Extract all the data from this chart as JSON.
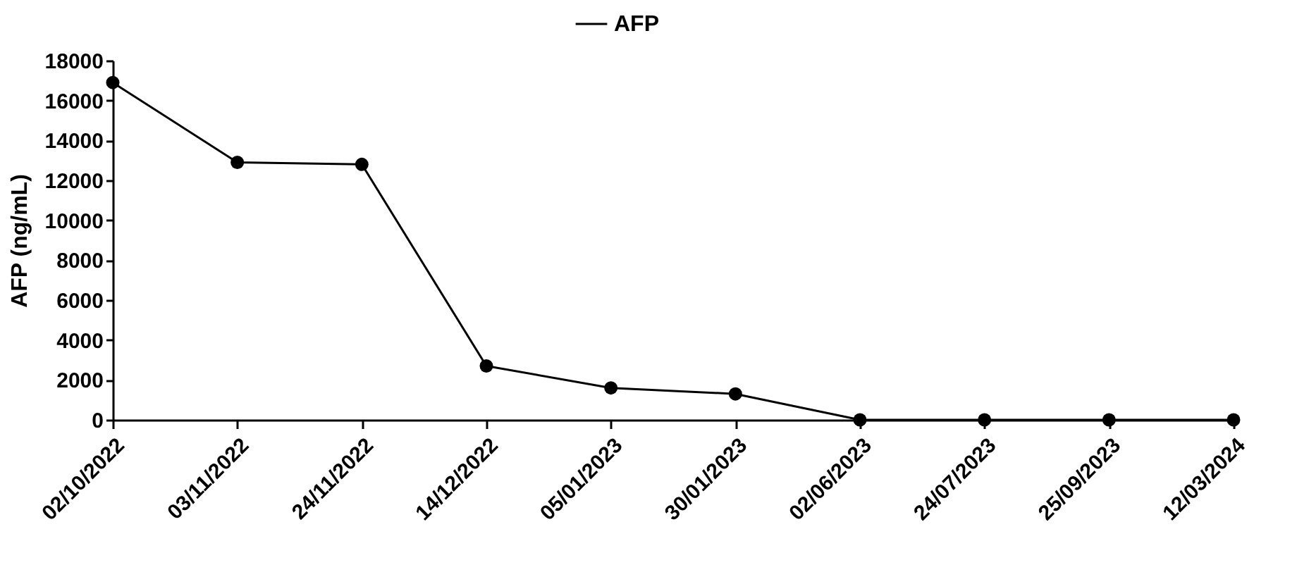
{
  "chart_data": {
    "type": "line",
    "ylabel": "AFP (ng/mL)",
    "categories": [
      "02/10/2022",
      "03/11/2022",
      "24/11/2022",
      "14/12/2022",
      "05/01/2023",
      "30/01/2023",
      "02/06/2023",
      "24/07/2023",
      "25/09/2023",
      "12/03/2024"
    ],
    "series": [
      {
        "name": "AFP",
        "color": "#000000",
        "values": [
          16900,
          12900,
          12800,
          2700,
          1600,
          1300,
          0,
          0,
          0,
          0
        ]
      }
    ],
    "ylim": [
      0,
      18000
    ],
    "yticks": [
      0,
      2000,
      4000,
      6000,
      8000,
      10000,
      12000,
      14000,
      16000,
      18000
    ],
    "grid": false,
    "legend": "top",
    "marker": "circle",
    "line_style": "solid"
  }
}
